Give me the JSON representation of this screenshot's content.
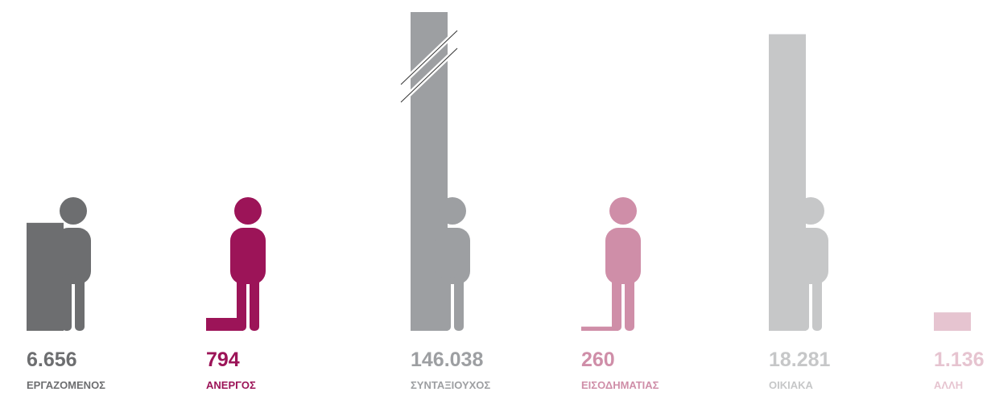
{
  "chart_data": {
    "type": "bar",
    "categories": [
      "ΕΡΓΑΖΟΜΕΝΟΣ",
      "ΑΝΕΡΓΟΣ",
      "ΣΥΝΤΑΞΙΟΥΧΟΣ",
      "ΕΙΣΟΔΗΜΑΤΙΑΣ",
      "ΟΙΚΙΑΚΑ",
      "ΑΛΛΗ"
    ],
    "values": [
      6656,
      794,
      146038,
      260,
      18281,
      1136
    ],
    "value_labels": [
      "6.656",
      "794",
      "146.038",
      "260",
      "18.281",
      "1.136"
    ],
    "colors": [
      "#6d6e70",
      "#9c1458",
      "#9d9fa2",
      "#cf8ea8",
      "#c6c7c8",
      "#e6c4d0"
    ],
    "ylim": [
      0,
      19000
    ]
  }
}
